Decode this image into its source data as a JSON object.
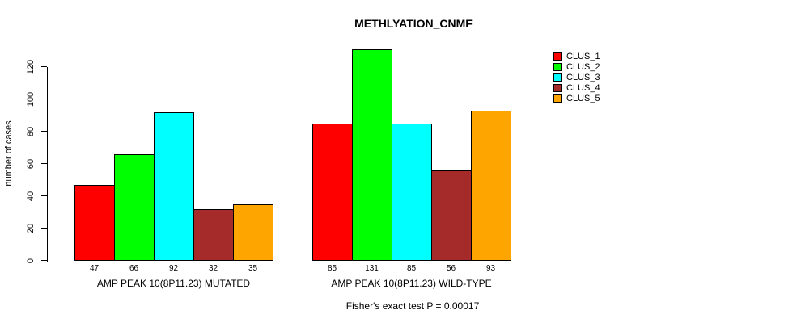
{
  "chart_data": {
    "type": "bar",
    "title": "METHLYATION_CNMF",
    "xlabel": "",
    "ylabel": "number of cases",
    "ylim": [
      0,
      131
    ],
    "yticks": [
      0,
      20,
      40,
      60,
      80,
      100,
      120
    ],
    "grid": false,
    "legend_position": "top-right",
    "bar_value_labels": true,
    "series_labels": [
      "CLUS_1",
      "CLUS_2",
      "CLUS_3",
      "CLUS_4",
      "CLUS_5"
    ],
    "colors": [
      "#FF0000",
      "#00FF00",
      "#00FFFF",
      "#A52A2A",
      "#FFA500"
    ],
    "groups": [
      {
        "label": "AMP PEAK 10(8P11.23) MUTATED",
        "values": [
          47,
          66,
          92,
          32,
          35
        ]
      },
      {
        "label": "AMP PEAK 10(8P11.23) WILD-TYPE",
        "values": [
          85,
          131,
          85,
          56,
          93
        ]
      }
    ],
    "annotation": "Fisher's exact test P = 0.00017"
  }
}
